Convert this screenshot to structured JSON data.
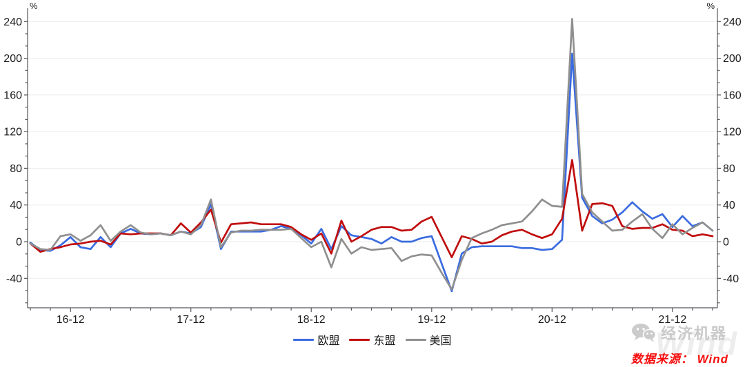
{
  "chart_data": {
    "type": "line",
    "title": "",
    "x": [
      "2016-08",
      "2016-09",
      "2016-10",
      "2016-11",
      "2016-12",
      "2017-01",
      "2017-02",
      "2017-03",
      "2017-04",
      "2017-05",
      "2017-06",
      "2017-07",
      "2017-08",
      "2017-09",
      "2017-10",
      "2017-11",
      "2017-12",
      "2018-01",
      "2018-02",
      "2018-03",
      "2018-04",
      "2018-05",
      "2018-06",
      "2018-07",
      "2018-08",
      "2018-09",
      "2018-10",
      "2018-11",
      "2018-12",
      "2019-01",
      "2019-02",
      "2019-03",
      "2019-04",
      "2019-05",
      "2019-06",
      "2019-07",
      "2019-08",
      "2019-09",
      "2019-10",
      "2019-11",
      "2019-12",
      "2020-01",
      "2020-02",
      "2020-03",
      "2020-04",
      "2020-05",
      "2020-06",
      "2020-07",
      "2020-08",
      "2020-09",
      "2020-10",
      "2020-11",
      "2020-12",
      "2021-01",
      "2021-02",
      "2021-03",
      "2021-04",
      "2021-05",
      "2021-06",
      "2021-07",
      "2021-08",
      "2021-09",
      "2021-10",
      "2021-11",
      "2021-12",
      "2022-01",
      "2022-02",
      "2022-03",
      "2022-04"
    ],
    "series": [
      {
        "name": "欧盟",
        "color": "#3A6BE0",
        "values": [
          -1,
          -9,
          -10,
          -4,
          5,
          -6,
          -8,
          5,
          -6,
          9,
          14,
          9,
          8,
          9,
          7,
          11,
          9,
          16,
          41,
          -8,
          11,
          11,
          11,
          11,
          13,
          17,
          14,
          7,
          -2,
          14,
          -8,
          17,
          7,
          5,
          3,
          -2,
          5,
          0,
          0,
          4,
          6,
          -24,
          -54,
          -13,
          -6,
          -5,
          -5,
          -5,
          -5,
          -7,
          -7,
          -9,
          -8,
          2,
          205,
          48,
          28,
          20,
          24,
          32,
          43,
          33,
          25,
          30,
          16,
          28,
          17,
          21,
          12
        ]
      },
      {
        "name": "东盟",
        "color": "#C00D0D",
        "values": [
          -2,
          -11,
          -8,
          -6,
          -3,
          -2,
          0,
          1,
          -3,
          9,
          8,
          9,
          9,
          9,
          7,
          20,
          10,
          21,
          35,
          -1,
          19,
          20,
          21,
          19,
          19,
          19,
          16,
          8,
          2,
          9,
          -13,
          23,
          0,
          6,
          13,
          16,
          16,
          12,
          13,
          22,
          27,
          5,
          -17,
          6,
          3,
          -2,
          0,
          7,
          11,
          13,
          8,
          4,
          8,
          25,
          89,
          12,
          41,
          42,
          39,
          17,
          14,
          15,
          15,
          19,
          13,
          12,
          6,
          8,
          6
        ]
      },
      {
        "name": "美国",
        "color": "#8F8F8F",
        "values": [
          -2,
          -8,
          -9,
          6,
          8,
          1,
          7,
          18,
          1,
          11,
          18,
          10,
          8,
          9,
          7,
          11,
          8,
          18,
          46,
          -6,
          10,
          12,
          12,
          13,
          13,
          13,
          14,
          4,
          -6,
          0,
          -28,
          3,
          -13,
          -6,
          -9,
          -8,
          -7,
          -21,
          -16,
          -14,
          -15,
          -34,
          -52,
          -20,
          4,
          9,
          13,
          18,
          20,
          22,
          33,
          46,
          39,
          38,
          243,
          52,
          32,
          22,
          12,
          13,
          22,
          30,
          14,
          4,
          19,
          8,
          15,
          21,
          12
        ]
      }
    ],
    "y_axis_unit": "%",
    "y_ticks": [
      -40,
      0,
      40,
      80,
      120,
      160,
      200,
      240
    ],
    "x_tick_labels": [
      "16-12",
      "17-12",
      "18-12",
      "19-12",
      "20-12",
      "21-12"
    ],
    "x_tick_label_indices": [
      4,
      16,
      28,
      40,
      52,
      64
    ],
    "ylim": [
      -72,
      255
    ],
    "grid": "horizontal",
    "legend_position": "bottom-center"
  },
  "watermark": {
    "account_name": "经济机器",
    "background_text": "Wind"
  },
  "footer": {
    "source_text": "数据来源： Wind"
  }
}
